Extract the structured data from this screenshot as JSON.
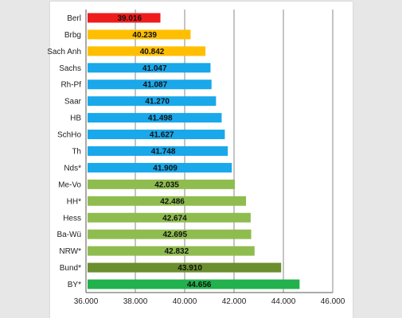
{
  "colors": {
    "red": "#ee1c1c",
    "orange": "#ffbf00",
    "blue": "#19a8ea",
    "light_green": "#8fbc4f",
    "dark_green": "#6b8e2f",
    "green": "#22b14c",
    "gridline": "#888888",
    "background": "#e7e7e7"
  },
  "chart_data": {
    "type": "bar",
    "orientation": "horizontal",
    "title": "",
    "xlabel": "",
    "ylabel": "",
    "xlim": [
      36000,
      46000
    ],
    "x_ticks": [
      36000,
      38000,
      40000,
      42000,
      44000,
      46000
    ],
    "x_tick_labels": [
      "36.000",
      "38.000",
      "40.000",
      "42.000",
      "44.000",
      "46.000"
    ],
    "grid": "vertical",
    "legend": "none",
    "categories": [
      "Berl",
      "Brbg",
      "Sach Anh",
      "Sachs",
      "Rh-Pf",
      "Saar",
      "HB",
      "SchHo",
      "Th",
      "Nds*",
      "Me-Vo",
      "HH*",
      "Hess",
      "Ba-Wü",
      "NRW*",
      "Bund*",
      "BY*"
    ],
    "values": [
      39016,
      40239,
      40842,
      41047,
      41087,
      41270,
      41498,
      41627,
      41748,
      41909,
      42035,
      42486,
      42674,
      42695,
      42832,
      43910,
      44656
    ],
    "data_labels": [
      "39.016",
      "40.239",
      "40.842",
      "41.047",
      "41.087",
      "41.270",
      "41.498",
      "41.627",
      "41.748",
      "41.909",
      "42.035",
      "42.486",
      "42.674",
      "42.695",
      "42.832",
      "43.910",
      "44.656"
    ],
    "bar_colors": [
      "red",
      "orange",
      "orange",
      "blue",
      "blue",
      "blue",
      "blue",
      "blue",
      "blue",
      "blue",
      "light_green",
      "light_green",
      "light_green",
      "light_green",
      "light_green",
      "dark_green",
      "green"
    ]
  }
}
